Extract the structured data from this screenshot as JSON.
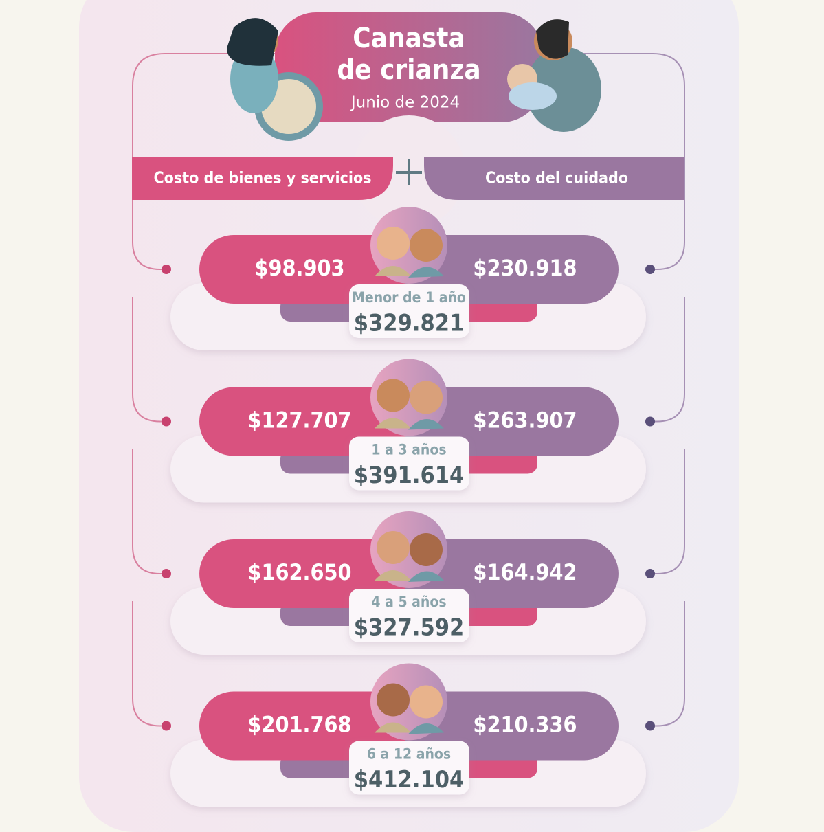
{
  "header": {
    "title_lines": [
      "Canasta",
      "de crianza"
    ],
    "subtitle": "Junio de 2024"
  },
  "columns": {
    "goods": "Costo de bienes y servicios",
    "care": "Costo del cuidado"
  },
  "rows": [
    {
      "goods": "$98.903",
      "care": "$230.918",
      "age": "Menor de 1 año",
      "total": "$329.821"
    },
    {
      "goods": "$127.707",
      "care": "$263.907",
      "age": "1 a 3 años",
      "total": "$391.614"
    },
    {
      "goods": "$162.650",
      "care": "$164.942",
      "age": "4 a 5 años",
      "total": "$327.592"
    },
    {
      "goods": "$201.768",
      "care": "$210.336",
      "age": "6 a 12 años",
      "total": "$412.104"
    }
  ]
}
